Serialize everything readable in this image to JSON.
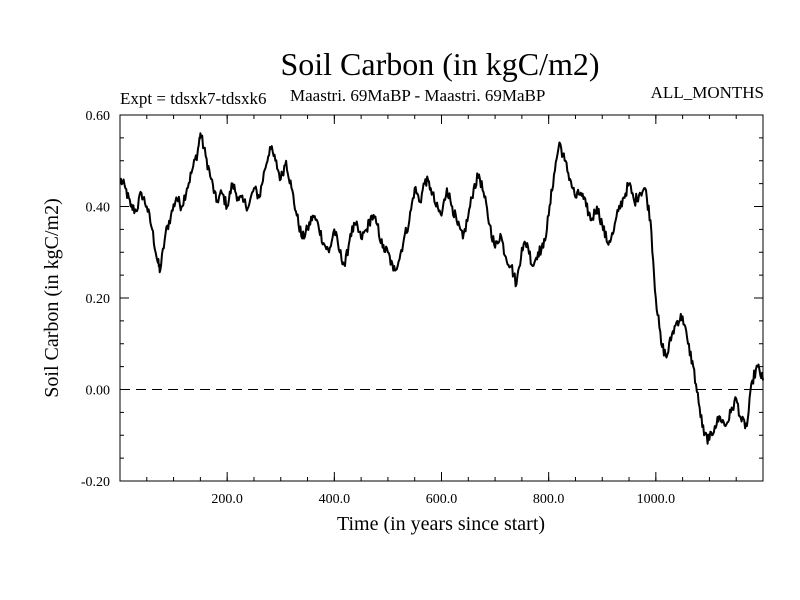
{
  "chart_data": {
    "type": "line",
    "title": "Soil Carbon (in kgC/m2)",
    "subtitle_left": "Expt = tdsxk7-tdsxk6",
    "subtitle_center": "Maastri.  69MaBP - Maastri.  69MaBP",
    "subtitle_right": "ALL_MONTHS",
    "xlabel": "Time (in years since start)",
    "ylabel": "Soil Carbon (in kgC/m2)",
    "xlim": [
      0,
      1200
    ],
    "ylim": [
      -0.2,
      0.6
    ],
    "xticks": [
      200,
      400,
      600,
      800,
      1000
    ],
    "xtick_labels": [
      "200.0",
      "400.0",
      "600.0",
      "800.0",
      "1000.0"
    ],
    "yticks": [
      -0.2,
      0.0,
      0.2,
      0.4,
      0.6
    ],
    "ytick_labels": [
      "-0.20",
      "0.00",
      "0.20",
      "0.40",
      "0.60"
    ],
    "reference_line": 0.0,
    "series": [
      {
        "name": "Soil Carbon",
        "color": "#000000",
        "x": [
          0,
          10,
          20,
          30,
          40,
          50,
          60,
          70,
          75,
          85,
          95,
          105,
          115,
          125,
          135,
          145,
          150,
          160,
          170,
          180,
          190,
          200,
          210,
          220,
          230,
          240,
          250,
          260,
          270,
          280,
          290,
          300,
          310,
          320,
          330,
          340,
          350,
          360,
          370,
          380,
          390,
          400,
          410,
          420,
          430,
          440,
          450,
          460,
          470,
          480,
          490,
          500,
          510,
          520,
          530,
          540,
          550,
          560,
          570,
          580,
          590,
          600,
          610,
          620,
          630,
          640,
          650,
          660,
          670,
          680,
          690,
          700,
          710,
          720,
          730,
          740,
          750,
          760,
          770,
          780,
          790,
          800,
          810,
          820,
          830,
          840,
          850,
          860,
          870,
          880,
          890,
          900,
          910,
          920,
          930,
          940,
          950,
          960,
          970,
          980,
          990,
          1000,
          1010,
          1020,
          1030,
          1040,
          1050,
          1060,
          1070,
          1080,
          1090,
          1100,
          1110,
          1120,
          1130,
          1140,
          1150,
          1160,
          1170,
          1180,
          1190,
          1200
        ],
        "values": [
          0.46,
          0.44,
          0.4,
          0.39,
          0.43,
          0.4,
          0.35,
          0.28,
          0.26,
          0.34,
          0.38,
          0.42,
          0.4,
          0.44,
          0.48,
          0.52,
          0.56,
          0.51,
          0.46,
          0.41,
          0.43,
          0.4,
          0.45,
          0.42,
          0.41,
          0.4,
          0.44,
          0.42,
          0.48,
          0.53,
          0.5,
          0.46,
          0.5,
          0.44,
          0.38,
          0.33,
          0.35,
          0.38,
          0.36,
          0.32,
          0.3,
          0.35,
          0.3,
          0.27,
          0.34,
          0.36,
          0.33,
          0.35,
          0.38,
          0.36,
          0.31,
          0.3,
          0.26,
          0.28,
          0.33,
          0.37,
          0.44,
          0.41,
          0.46,
          0.44,
          0.4,
          0.38,
          0.44,
          0.4,
          0.36,
          0.33,
          0.38,
          0.44,
          0.47,
          0.42,
          0.36,
          0.31,
          0.34,
          0.29,
          0.27,
          0.23,
          0.31,
          0.32,
          0.27,
          0.3,
          0.31,
          0.38,
          0.47,
          0.54,
          0.5,
          0.46,
          0.42,
          0.43,
          0.4,
          0.37,
          0.4,
          0.36,
          0.32,
          0.34,
          0.39,
          0.42,
          0.45,
          0.41,
          0.43,
          0.44,
          0.37,
          0.2,
          0.1,
          0.07,
          0.12,
          0.15,
          0.16,
          0.1,
          0.05,
          -0.03,
          -0.1,
          -0.11,
          -0.08,
          -0.06,
          -0.08,
          -0.05,
          -0.02,
          -0.07,
          -0.08,
          0.02,
          0.05,
          0.02
        ]
      }
    ]
  }
}
